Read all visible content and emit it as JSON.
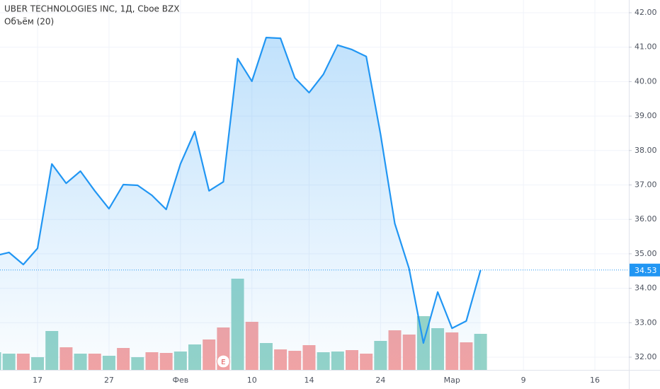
{
  "chart_data": {
    "type": "area",
    "title": "UBER TECHNOLOGIES INC, 1Д, Cboe BZX",
    "subtitle": "Объём (20)",
    "categories": [
      null,
      null,
      null,
      "17",
      null,
      null,
      null,
      null,
      "27",
      null,
      null,
      null,
      null,
      "Фев",
      null,
      null,
      null,
      null,
      "10",
      null,
      null,
      null,
      "14",
      null,
      null,
      null,
      null,
      "24",
      null,
      null,
      null,
      null,
      "Мар",
      null,
      null,
      null,
      null,
      "9",
      null,
      null,
      null,
      null,
      "16"
    ],
    "series": [
      {
        "name": "UBER",
        "color": "#2196f3",
        "values": [
          34.94,
          35.04,
          34.69,
          35.16,
          37.61,
          37.05,
          37.4,
          36.83,
          36.31,
          37.01,
          36.99,
          36.7,
          36.29,
          37.61,
          38.55,
          36.83,
          37.09,
          40.67,
          40.01,
          41.28,
          41.26,
          40.11,
          39.68,
          40.21,
          41.06,
          40.93,
          40.73,
          38.47,
          35.88,
          34.57,
          32.41,
          33.89,
          32.84,
          33.05,
          34.53,
          null,
          null,
          null,
          null,
          null,
          null,
          null,
          null
        ]
      }
    ],
    "volume": {
      "values": [
        25,
        23,
        23,
        18,
        55,
        32,
        23,
        23,
        20,
        31,
        18,
        25,
        24,
        26,
        36,
        43,
        60,
        129,
        68,
        38,
        29,
        27,
        35,
        25,
        26,
        28,
        23,
        41,
        56,
        50,
        76,
        59,
        53,
        39,
        51,
        null,
        null,
        null,
        null,
        null,
        null,
        null,
        null
      ],
      "colors": [
        "#94d3c8",
        "#94d3c8",
        "#f4a3a3",
        "#94d3c8",
        "#94d3c8",
        "#f4a3a3",
        "#94d3c8",
        "#f4a3a3",
        "#94d3c8",
        "#f4a3a3",
        "#94d3c8",
        "#f4a3a3",
        "#f4a3a3",
        "#94d3c8",
        "#94d3c8",
        "#f4a3a3",
        "#f4a3a3",
        "#94d3c8",
        "#f4a3a3",
        "#94d3c8",
        "#f4a3a3",
        "#f4a3a3",
        "#f4a3a3",
        "#94d3c8",
        "#94d3c8",
        "#f4a3a3",
        "#f4a3a3",
        "#94d3c8",
        "#f4a3a3",
        "#f4a3a3",
        "#94d3c8",
        "#94d3c8",
        "#f4a3a3",
        "#f4a3a3",
        "#94d3c8",
        null,
        null,
        null,
        null,
        null,
        null,
        null,
        null
      ],
      "vlim": [
        0,
        130
      ]
    },
    "ylim": [
      31.63,
      42.37
    ],
    "yticks": [
      {
        "value": 32,
        "label": "32.00"
      },
      {
        "value": 33,
        "label": "33.00"
      },
      {
        "value": 34,
        "label": "34.00"
      },
      {
        "value": 35,
        "label": "35.00"
      },
      {
        "value": 36,
        "label": "36.00"
      },
      {
        "value": 37,
        "label": "37.00"
      },
      {
        "value": 38,
        "label": "38.00"
      },
      {
        "value": 39,
        "label": "39.00"
      },
      {
        "value": 40,
        "label": "40.00"
      },
      {
        "value": 41,
        "label": "41.00"
      },
      {
        "value": 42,
        "label": "42.00"
      }
    ],
    "last_price": 34.53,
    "event_marker": {
      "label": "E",
      "index": 16
    },
    "grid": true
  }
}
